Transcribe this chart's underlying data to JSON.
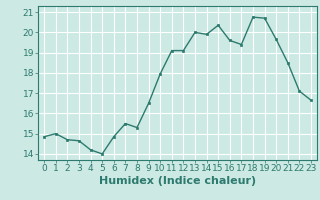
{
  "x": [
    0,
    1,
    2,
    3,
    4,
    5,
    6,
    7,
    8,
    9,
    10,
    11,
    12,
    13,
    14,
    15,
    16,
    17,
    18,
    19,
    20,
    21,
    22,
    23
  ],
  "y": [
    14.85,
    15.0,
    14.7,
    14.65,
    14.2,
    14.0,
    14.85,
    15.5,
    15.3,
    16.5,
    17.95,
    19.1,
    19.1,
    20.0,
    19.9,
    20.35,
    19.6,
    19.4,
    20.75,
    20.7,
    19.65,
    18.5,
    17.1,
    16.65
  ],
  "line_color": "#2d7a6e",
  "marker": "s",
  "markersize": 2.0,
  "linewidth": 1.0,
  "xlabel": "Humidex (Indice chaleur)",
  "xlabel_fontsize": 8,
  "xlabel_weight": "bold",
  "xlim": [
    -0.5,
    23.5
  ],
  "ylim": [
    13.7,
    21.3
  ],
  "yticks": [
    14,
    15,
    16,
    17,
    18,
    19,
    20,
    21
  ],
  "xticks": [
    0,
    1,
    2,
    3,
    4,
    5,
    6,
    7,
    8,
    9,
    10,
    11,
    12,
    13,
    14,
    15,
    16,
    17,
    18,
    19,
    20,
    21,
    22,
    23
  ],
  "bg_color": "#cce9e4",
  "grid_color": "#ffffff",
  "tick_color": "#2d7a6e",
  "tick_fontsize": 6.5,
  "spine_color": "#2d7a6e"
}
